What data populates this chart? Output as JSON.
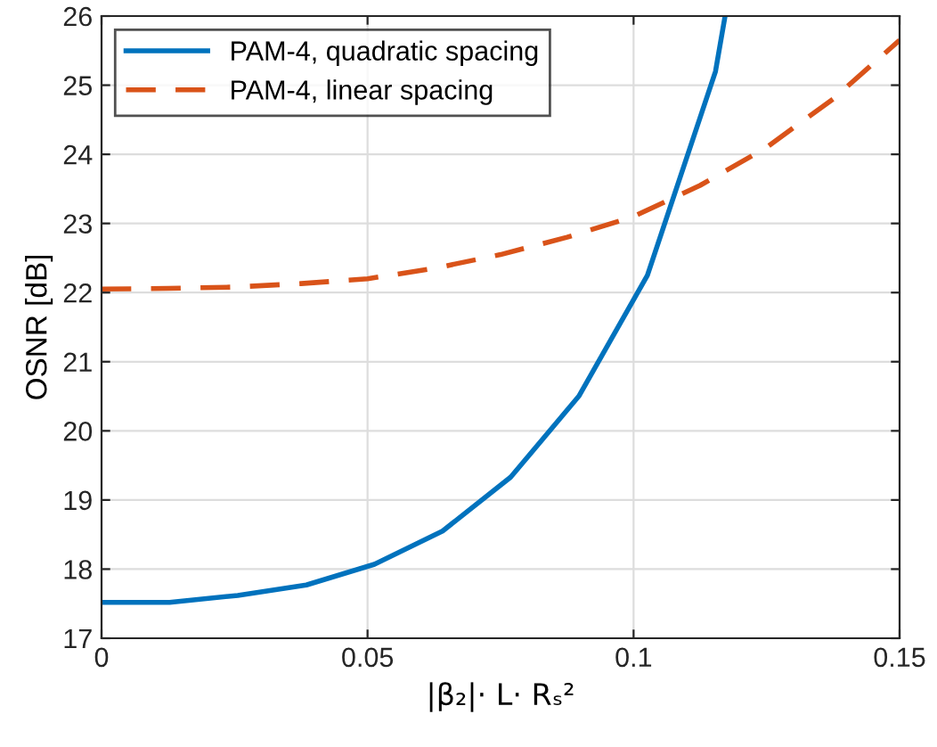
{
  "chart_data": {
    "type": "line",
    "xlabel": "|β₂|· L· Rₛ²",
    "ylabel": "OSNR [dB]",
    "xlim": [
      0,
      0.15
    ],
    "xticks": [
      0,
      0.05,
      0.1,
      0.15
    ],
    "ylim": [
      17,
      26
    ],
    "yticks": [
      17,
      18,
      19,
      20,
      21,
      22,
      23,
      24,
      25,
      26
    ],
    "grid": true,
    "legend": "top left",
    "series": [
      {
        "name": "PAM-4, quadratic spacing",
        "color": "#0072bd",
        "line_style": "solid",
        "x": [
          0,
          0.0128,
          0.0256,
          0.0385,
          0.0513,
          0.0641,
          0.0769,
          0.0897,
          0.1026,
          0.1154,
          0.1172
        ],
        "values": [
          17.52,
          17.52,
          17.62,
          17.77,
          18.07,
          18.55,
          19.33,
          20.5,
          22.25,
          25.2,
          26
        ]
      },
      {
        "name": "PAM-4, linear spacing",
        "color": "#d95319",
        "line_style": "dashed",
        "x": [
          0,
          0.0125,
          0.025,
          0.0375,
          0.05,
          0.0625,
          0.075,
          0.0875,
          0.1,
          0.1125,
          0.125,
          0.1375,
          0.15
        ],
        "values": [
          22.05,
          22.06,
          22.08,
          22.13,
          22.2,
          22.35,
          22.55,
          22.8,
          23.1,
          23.55,
          24.1,
          24.8,
          25.65
        ]
      }
    ]
  }
}
